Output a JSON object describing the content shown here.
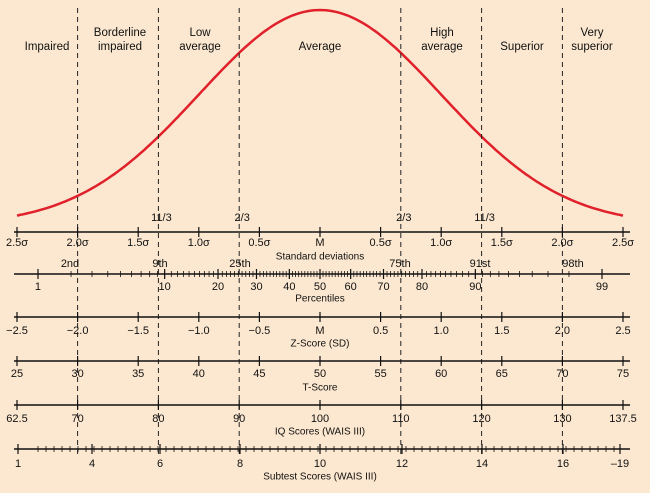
{
  "categories": [
    {
      "lines": [
        "Impaired"
      ]
    },
    {
      "lines": [
        "Borderline",
        "impaired"
      ]
    },
    {
      "lines": [
        "Low",
        "average"
      ]
    },
    {
      "lines": [
        "Average"
      ]
    },
    {
      "lines": [
        "High",
        "average"
      ]
    },
    {
      "lines": [
        "Superior"
      ]
    },
    {
      "lines": [
        "Very",
        "superior"
      ]
    }
  ],
  "cut_labels": [
    "11/3",
    "2/3",
    "2/3",
    "11/3"
  ],
  "scales": [
    {
      "title": "Standard deviations",
      "labels": [
        "2.5σ",
        "2.0σ",
        "1.5σ",
        "1.0σ",
        "0.5σ",
        "M",
        "0.5σ",
        "1.0σ",
        "1.5σ",
        "2.0σ",
        "2.5σ"
      ]
    },
    {
      "title": "Percentiles",
      "upper_labels": [
        "2nd",
        "9th",
        "25th",
        "75th",
        "91st",
        "98th"
      ],
      "labels": [
        "1",
        "10",
        "20",
        "30",
        "40",
        "50",
        "60",
        "70",
        "80",
        "90",
        "99"
      ]
    },
    {
      "title": "Z-Score (SD)",
      "labels": [
        "−2.5",
        "−2.0",
        "−1.5",
        "−1.0",
        "−0.5",
        "M",
        "0.5",
        "1.0",
        "1.5",
        "2.0",
        "2.5"
      ]
    },
    {
      "title": "T-Score",
      "labels": [
        "25",
        "30",
        "35",
        "40",
        "45",
        "50",
        "55",
        "60",
        "65",
        "70",
        "75"
      ]
    },
    {
      "title": "IQ Scores (WAIS III)",
      "labels": [
        "62.5",
        "70",
        "80",
        "90",
        "100",
        "110",
        "120",
        "130",
        "137.5"
      ]
    },
    {
      "title": "Subtest Scores (WAIS III)",
      "labels": [
        "1",
        "4",
        "6",
        "8",
        "10",
        "12",
        "14",
        "16",
        "–19"
      ]
    }
  ]
}
